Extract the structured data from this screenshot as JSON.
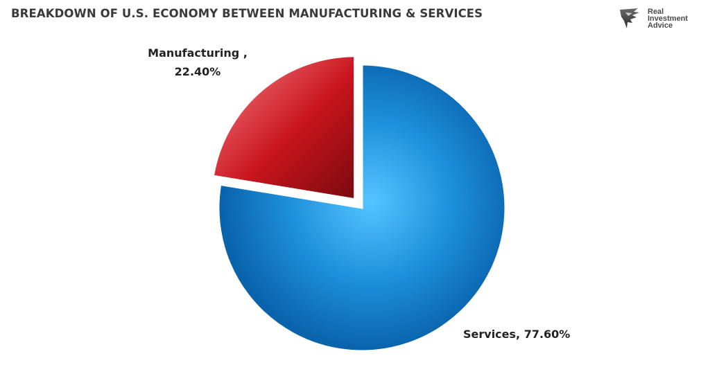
{
  "chart_data": {
    "type": "pie",
    "title": "BREAKDOWN OF U.S. ECONOMY BETWEEN MANUFACTURING & SERVICES",
    "slices": [
      {
        "category": "Services",
        "value": 77.6,
        "label": "Services, 77.60%",
        "color": "#1a8ad6"
      },
      {
        "category": "Manufacturing",
        "value": 22.4,
        "label_lines": [
          "Manufacturing ,",
          "22.40%"
        ],
        "color": "#c8141c",
        "exploded": true
      }
    ]
  },
  "logo": {
    "lines": [
      "Real",
      "Investment",
      "Advice"
    ],
    "icon": "eagle-icon"
  }
}
